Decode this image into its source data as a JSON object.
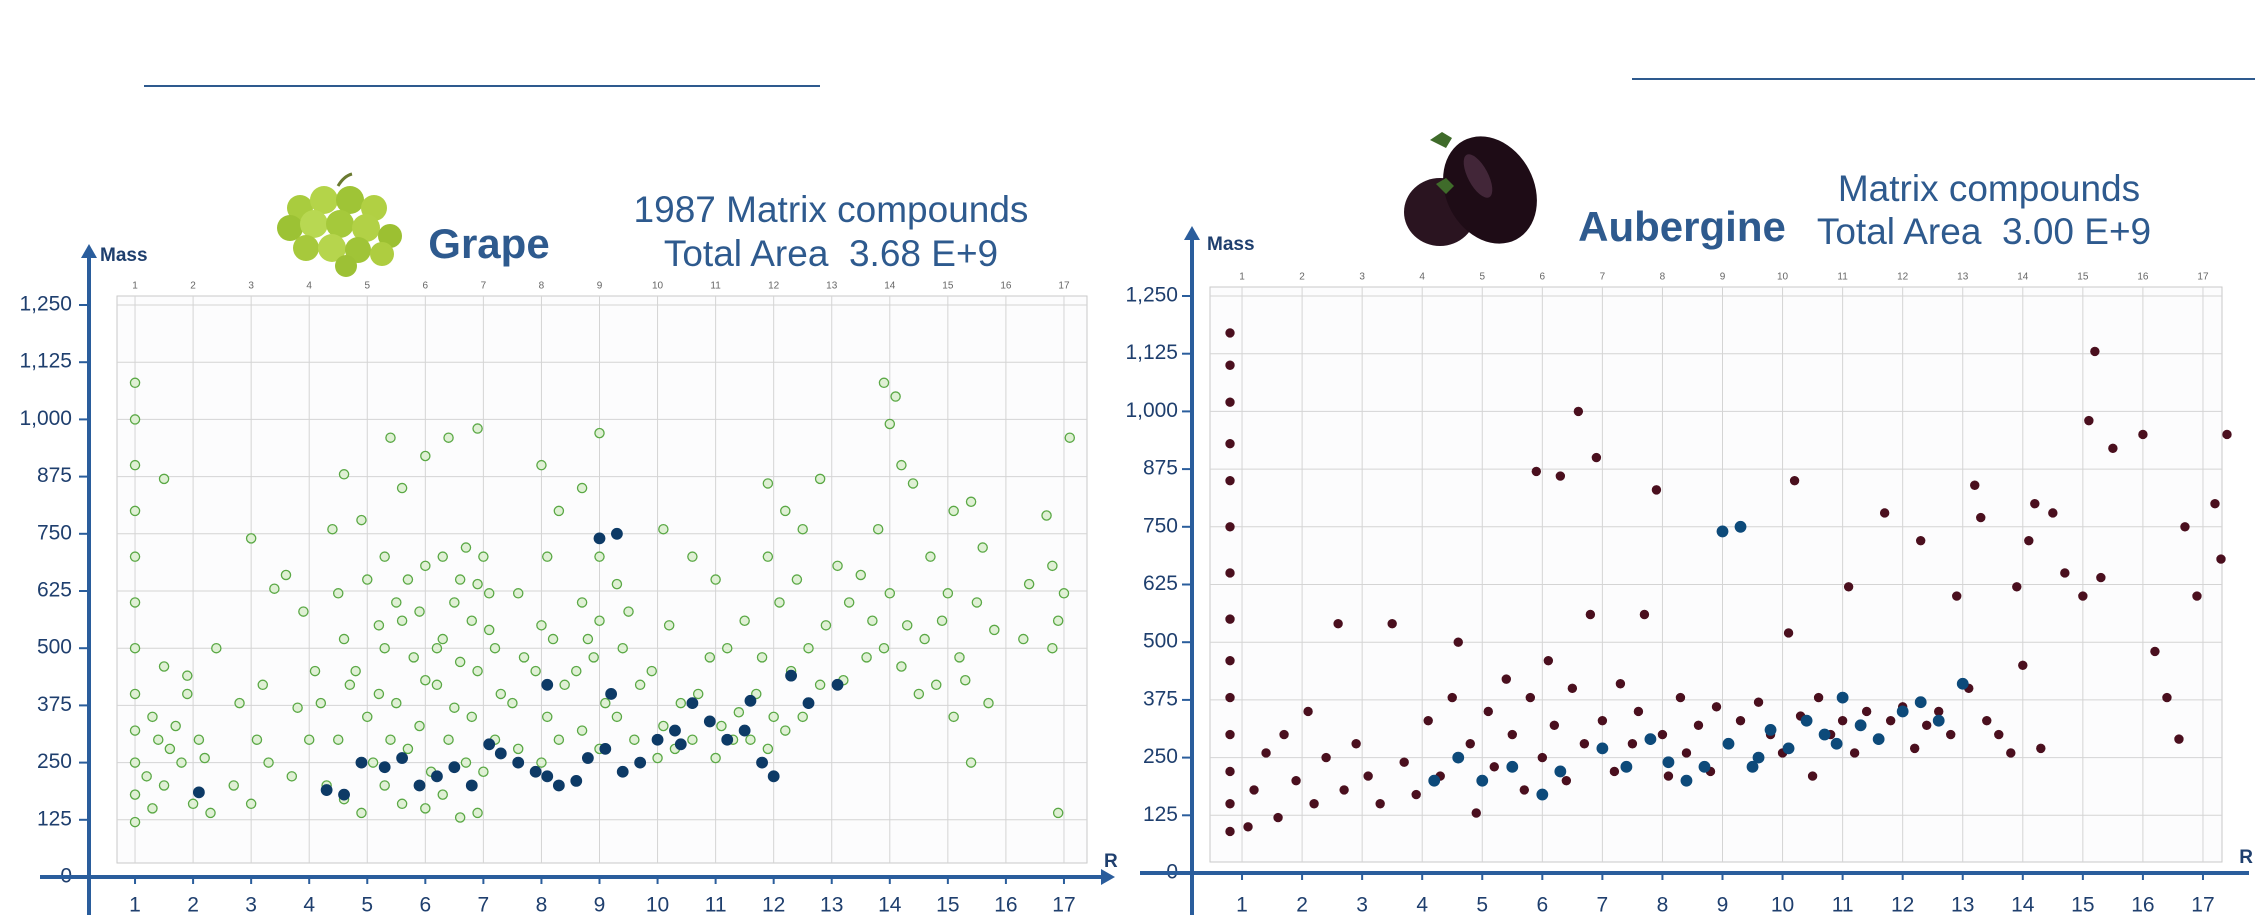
{
  "chart_data": [
    {
      "type": "scatter",
      "title": "Grape",
      "annotations": [
        "1987 Matrix compounds",
        "Total Area  3.68 E+9"
      ],
      "y_label": "Mass",
      "x_label": "R",
      "xlim": [
        0.5,
        17.5
      ],
      "ylim": [
        0,
        1250
      ],
      "xticks": [
        1,
        2,
        3,
        4,
        5,
        6,
        7,
        8,
        9,
        10,
        11,
        12,
        13,
        14,
        15,
        16,
        17
      ],
      "yticks": [
        0,
        125,
        250,
        375,
        500,
        625,
        750,
        875,
        {
          "value": 1000,
          "label": "1,000"
        },
        {
          "value": 1125,
          "label": "1,125"
        },
        {
          "value": 1250,
          "label": "1,250"
        }
      ],
      "grid": true,
      "series": [
        {
          "color": "#5aa845",
          "marker": "open",
          "x": [
            1.0,
            1.0,
            1.0,
            1.0,
            1.0,
            1.0,
            1.0,
            1.0,
            1.0,
            1.0,
            1.0,
            1.0,
            1.3,
            1.2,
            1.4,
            1.3,
            1.5,
            1.6,
            1.5,
            1.5,
            1.8,
            1.7,
            1.9,
            2.0,
            2.1,
            1.9,
            2.3,
            2.2,
            2.4,
            2.7,
            2.8,
            3.0,
            3.1,
            3.0,
            3.3,
            3.2,
            3.4,
            3.7,
            3.8,
            3.6,
            4.0,
            4.1,
            3.9,
            4.3,
            4.2,
            4.4,
            4.6,
            4.5,
            4.7,
            4.6,
            4.5,
            4.6,
            4.9,
            5.1,
            5.0,
            4.8,
            5.2,
            5.0,
            4.9,
            5.3,
            5.4,
            5.2,
            5.3,
            5.5,
            5.3,
            5.4,
            5.6,
            5.7,
            5.5,
            5.8,
            5.6,
            5.7,
            5.6,
            6.0,
            6.1,
            5.9,
            6.0,
            6.2,
            5.9,
            6.0,
            6.0,
            6.3,
            6.4,
            6.2,
            6.3,
            6.5,
            6.3,
            6.4,
            6.6,
            6.7,
            6.5,
            6.6,
            6.8,
            6.6,
            6.7,
            6.9,
            7.0,
            6.8,
            6.9,
            7.1,
            6.9,
            7.0,
            6.9,
            7.2,
            7.3,
            7.2,
            7.1,
            7.6,
            7.5,
            7.7,
            7.6,
            8.0,
            8.1,
            7.9,
            8.0,
            8.1,
            8.0,
            8.3,
            8.4,
            8.2,
            8.3,
            8.7,
            8.6,
            8.8,
            8.7,
            8.7,
            9.0,
            9.1,
            8.9,
            9.0,
            9.0,
            9.0,
            9.3,
            9.4,
            9.3,
            9.6,
            9.7,
            9.5,
            10.0,
            10.1,
            9.9,
            10.1,
            10.3,
            10.4,
            10.2,
            10.6,
            10.7,
            10.6,
            11.0,
            11.1,
            10.9,
            11.0,
            11.3,
            11.4,
            11.2,
            11.6,
            11.7,
            11.5,
            11.9,
            12.0,
            11.8,
            11.9,
            11.9,
            12.2,
            12.3,
            12.1,
            12.2,
            12.5,
            12.6,
            12.4,
            12.5,
            12.8,
            12.9,
            12.8,
            13.2,
            13.3,
            13.1,
            13.6,
            13.7,
            13.5,
            13.9,
            13.9,
            14.0,
            13.8,
            14.1,
            14.2,
            14.3,
            14.2,
            14.0,
            14.5,
            14.6,
            14.4,
            14.8,
            14.9,
            14.7,
            15.1,
            15.2,
            15.0,
            15.1,
            15.4,
            15.3,
            15.5,
            15.4,
            15.7,
            15.8,
            15.6,
            16.3,
            16.4,
            16.8,
            16.9,
            17.0,
            16.8,
            16.9,
            16.7,
            17.1
          ],
          "values": [
            120,
            180,
            250,
            320,
            400,
            500,
            600,
            700,
            800,
            900,
            1000,
            1080,
            150,
            220,
            300,
            350,
            200,
            280,
            460,
            870,
            250,
            330,
            440,
            160,
            300,
            400,
            140,
            260,
            500,
            200,
            380,
            160,
            300,
            740,
            250,
            420,
            630,
            220,
            370,
            660,
            300,
            450,
            580,
            200,
            380,
            760,
            170,
            300,
            420,
            520,
            620,
            880,
            140,
            250,
            350,
            450,
            550,
            650,
            780,
            200,
            300,
            400,
            500,
            600,
            700,
            960,
            160,
            280,
            380,
            480,
            560,
            650,
            850,
            150,
            230,
            330,
            430,
            500,
            580,
            680,
            920,
            180,
            300,
            420,
            520,
            600,
            700,
            960,
            130,
            250,
            370,
            470,
            560,
            650,
            720,
            140,
            230,
            350,
            450,
            540,
            640,
            700,
            980,
            300,
            400,
            500,
            620,
            280,
            380,
            480,
            620,
            250,
            350,
            450,
            550,
            700,
            900,
            300,
            420,
            520,
            800,
            320,
            450,
            520,
            600,
            850,
            280,
            380,
            480,
            560,
            700,
            970,
            350,
            500,
            640,
            300,
            420,
            580,
            260,
            330,
            450,
            760,
            280,
            380,
            550,
            300,
            400,
            700,
            260,
            330,
            480,
            650,
            300,
            360,
            500,
            300,
            400,
            560,
            280,
            350,
            480,
            700,
            860,
            320,
            450,
            600,
            800,
            350,
            500,
            650,
            760,
            420,
            550,
            870,
            430,
            600,
            680,
            480,
            560,
            660,
            1080,
            500,
            620,
            760,
            1050,
            460,
            550,
            900,
            990,
            400,
            520,
            860,
            420,
            560,
            700,
            350,
            480,
            620,
            800,
            250,
            430,
            600,
            820,
            380,
            540,
            720,
            520,
            640,
            500,
            560,
            620,
            680,
            140,
            790,
            960
          ]
        },
        {
          "color": "#0d3a66",
          "marker": "filled",
          "x": [
            2.1,
            4.3,
            4.6,
            4.9,
            5.3,
            5.6,
            5.9,
            6.2,
            6.5,
            6.8,
            7.1,
            7.3,
            7.6,
            7.9,
            8.1,
            8.3,
            8.6,
            8.8,
            9.0,
            9.3,
            9.1,
            9.4,
            9.7,
            10.0,
            10.3,
            10.6,
            10.9,
            11.2,
            11.5,
            11.8,
            12.0,
            12.3,
            12.6,
            13.1,
            8.1,
            9.2,
            10.4,
            11.6
          ],
          "values": [
            185,
            190,
            180,
            250,
            240,
            260,
            200,
            220,
            240,
            200,
            290,
            270,
            250,
            230,
            220,
            200,
            210,
            260,
            740,
            750,
            280,
            230,
            250,
            300,
            320,
            380,
            340,
            300,
            320,
            250,
            220,
            440,
            380,
            420,
            420,
            400,
            290,
            385
          ]
        }
      ]
    },
    {
      "type": "scatter",
      "title": "Aubergine",
      "annotations": [
        "Matrix compounds",
        "Total Area  3.00 E+9"
      ],
      "y_label": "Mass",
      "x_label": "R",
      "xlim": [
        0.5,
        17.5
      ],
      "ylim": [
        0,
        1250
      ],
      "xticks": [
        1,
        2,
        3,
        4,
        5,
        6,
        7,
        8,
        9,
        10,
        11,
        12,
        13,
        14,
        15,
        16,
        17
      ],
      "yticks": [
        0,
        125,
        250,
        375,
        500,
        625,
        750,
        875,
        {
          "value": 1000,
          "label": "1,000"
        },
        {
          "value": 1125,
          "label": "1,125"
        },
        {
          "value": 1250,
          "label": "1,250"
        }
      ],
      "grid": true,
      "series": [
        {
          "color": "#4a0f1e",
          "marker": "filled",
          "x": [
            0.8,
            0.8,
            0.8,
            0.8,
            0.8,
            0.8,
            0.8,
            0.8,
            0.8,
            0.8,
            0.8,
            0.8,
            0.8,
            0.8,
            1.1,
            1.2,
            1.4,
            1.6,
            1.7,
            1.9,
            2.1,
            2.2,
            2.4,
            2.6,
            2.7,
            2.9,
            3.1,
            3.3,
            3.5,
            3.7,
            3.9,
            4.1,
            4.3,
            4.5,
            4.6,
            4.8,
            4.9,
            5.1,
            5.2,
            5.4,
            5.5,
            5.7,
            5.8,
            5.9,
            6.0,
            6.1,
            6.2,
            6.3,
            6.4,
            6.5,
            6.6,
            6.7,
            6.8,
            6.9,
            7.0,
            7.2,
            7.3,
            7.5,
            7.6,
            7.7,
            7.9,
            8.0,
            8.1,
            8.3,
            8.4,
            8.6,
            8.8,
            8.9,
            9.1,
            9.3,
            9.5,
            9.6,
            9.8,
            10.0,
            10.1,
            10.2,
            10.3,
            10.5,
            10.6,
            10.8,
            11.0,
            11.1,
            11.2,
            11.4,
            11.6,
            11.7,
            11.8,
            12.0,
            12.2,
            12.3,
            12.4,
            12.6,
            12.8,
            12.9,
            13.1,
            13.2,
            13.3,
            13.4,
            13.6,
            13.8,
            13.9,
            14.0,
            14.1,
            14.2,
            14.3,
            14.5,
            14.7,
            15.0,
            15.1,
            15.2,
            15.3,
            15.5,
            16.0,
            16.2,
            16.4,
            16.6,
            16.7,
            16.9,
            17.2,
            17.3,
            17.4
          ],
          "values": [
            90,
            150,
            220,
            300,
            380,
            460,
            550,
            650,
            750,
            850,
            930,
            1020,
            1100,
            1170,
            100,
            180,
            260,
            120,
            300,
            200,
            350,
            150,
            250,
            540,
            180,
            280,
            210,
            150,
            540,
            240,
            170,
            330,
            210,
            380,
            500,
            280,
            130,
            350,
            230,
            420,
            300,
            180,
            380,
            870,
            250,
            460,
            320,
            860,
            200,
            400,
            1000,
            280,
            560,
            900,
            330,
            220,
            410,
            280,
            350,
            560,
            830,
            300,
            210,
            380,
            260,
            320,
            220,
            360,
            280,
            330,
            230,
            370,
            300,
            260,
            520,
            850,
            340,
            210,
            380,
            300,
            330,
            620,
            260,
            350,
            290,
            780,
            330,
            360,
            270,
            720,
            320,
            350,
            300,
            600,
            400,
            840,
            770,
            330,
            300,
            260,
            620,
            450,
            720,
            800,
            270,
            780,
            650,
            600,
            980,
            1130,
            640,
            920,
            950,
            480,
            380,
            290,
            750,
            600,
            800,
            680,
            950
          ]
        },
        {
          "color": "#0d4a7a",
          "marker": "filled",
          "x": [
            4.2,
            4.6,
            5.0,
            5.5,
            6.0,
            6.3,
            7.0,
            7.4,
            7.8,
            8.1,
            8.4,
            8.7,
            9.0,
            9.3,
            9.1,
            9.5,
            9.8,
            10.1,
            10.4,
            10.7,
            11.0,
            11.3,
            11.6,
            12.0,
            12.3,
            12.6,
            13.0,
            9.6,
            10.9
          ],
          "values": [
            200,
            250,
            200,
            230,
            170,
            220,
            270,
            230,
            290,
            240,
            200,
            230,
            740,
            750,
            280,
            230,
            310,
            270,
            330,
            300,
            380,
            320,
            290,
            350,
            370,
            330,
            410,
            250,
            280
          ]
        }
      ]
    }
  ]
}
